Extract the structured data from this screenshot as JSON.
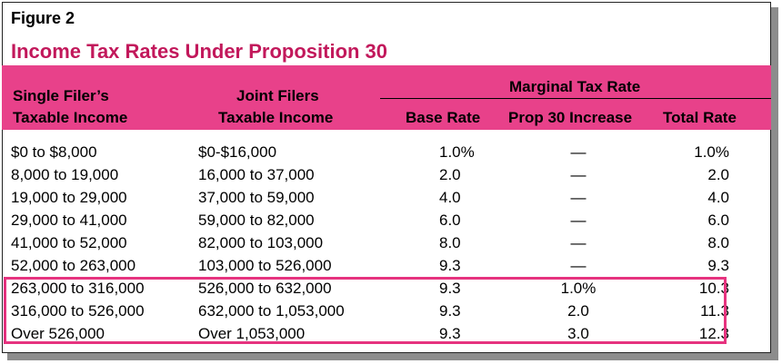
{
  "figure_label": "Figure 2",
  "title": "Income Tax Rates Under Proposition 30",
  "headers": {
    "single_line1": "Single Filer’s",
    "single_line2": "Taxable Income",
    "joint_line1": "Joint Filers",
    "joint_line2": "Taxable Income",
    "group": "Marginal Tax Rate",
    "base": "Base Rate",
    "prop30": "Prop 30 Increase",
    "total": "Total Rate"
  },
  "rows": [
    {
      "single": "$0 to $8,000",
      "joint": "$0-$16,000",
      "base": "1.0%",
      "increase": "—",
      "total": "1.0%"
    },
    {
      "single": "8,000 to 19,000",
      "joint": "16,000 to 37,000",
      "base": "2.0",
      "increase": "—",
      "total": "2.0"
    },
    {
      "single": "19,000 to 29,000",
      "joint": "37,000 to 59,000",
      "base": "4.0",
      "increase": "—",
      "total": "4.0"
    },
    {
      "single": "29,000 to 41,000",
      "joint": "59,000 to 82,000",
      "base": "6.0",
      "increase": "—",
      "total": "6.0"
    },
    {
      "single": "41,000 to 52,000",
      "joint": "82,000 to 103,000",
      "base": "8.0",
      "increase": "—",
      "total": "8.0"
    },
    {
      "single": "52,000 to 263,000",
      "joint": "103,000 to 526,000",
      "base": "9.3",
      "increase": "—",
      "total": "9.3"
    },
    {
      "single": "263,000 to 316,000",
      "joint": "526,000 to 632,000",
      "base": "9.3",
      "increase": "1.0%",
      "total": "10.3"
    },
    {
      "single": "316,000 to 526,000",
      "joint": "632,000 to 1,053,000",
      "base": "9.3",
      "increase": "2.0",
      "total": "11.3"
    },
    {
      "single": "Over 526,000",
      "joint": "Over 1,053,000",
      "base": "9.3",
      "increase": "3.0",
      "total": "12.3"
    }
  ],
  "colors": {
    "header_bg": "#e8418a",
    "title": "#c2185b",
    "highlight_border": "#e6337f"
  }
}
